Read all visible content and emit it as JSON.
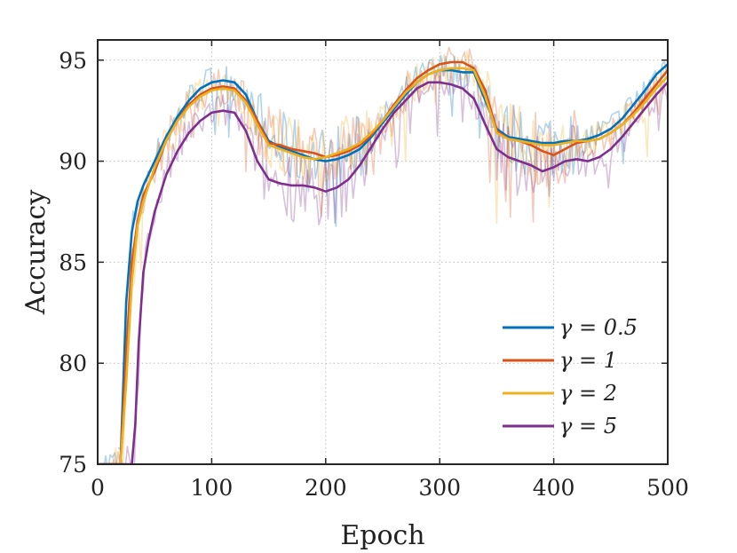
{
  "chart_data": {
    "type": "line",
    "title": "",
    "xlabel": "Epoch",
    "ylabel": "Accuracy",
    "xlim": [
      0,
      500
    ],
    "ylim": [
      75,
      96
    ],
    "xticks": [
      0,
      100,
      200,
      300,
      400,
      500
    ],
    "yticks": [
      75,
      80,
      85,
      90,
      95
    ],
    "grid": true,
    "legend_position": "lower-right",
    "series": [
      {
        "name": "γ = 0.5",
        "color": "#0072BD",
        "x": [
          0,
          15,
          20,
          25,
          30,
          35,
          40,
          50,
          60,
          70,
          80,
          90,
          100,
          110,
          120,
          130,
          140,
          150,
          160,
          170,
          180,
          190,
          200,
          210,
          220,
          230,
          240,
          250,
          260,
          270,
          280,
          290,
          300,
          310,
          320,
          330,
          340,
          350,
          360,
          370,
          380,
          390,
          400,
          410,
          420,
          430,
          440,
          450,
          460,
          470,
          480,
          490,
          500
        ],
        "y": [
          75,
          75,
          75,
          83,
          86.5,
          88,
          88.8,
          90,
          91.2,
          92.2,
          93,
          93.6,
          93.9,
          94,
          93.9,
          93.3,
          92,
          91,
          90.7,
          90.5,
          90.3,
          90.1,
          90,
          90.1,
          90.3,
          90.6,
          91.2,
          91.9,
          92.6,
          93.3,
          93.9,
          94.3,
          94.5,
          94.5,
          94.4,
          94.4,
          93,
          91.6,
          91.2,
          91.1,
          91,
          90.9,
          90.9,
          91,
          91,
          91.1,
          91.3,
          91.6,
          92.1,
          92.8,
          93.5,
          94.3,
          94.8
        ]
      },
      {
        "name": "γ = 1",
        "color": "#D95319",
        "x": [
          0,
          20,
          25,
          30,
          35,
          40,
          50,
          60,
          70,
          80,
          90,
          100,
          110,
          120,
          130,
          140,
          150,
          160,
          170,
          180,
          190,
          200,
          210,
          220,
          230,
          240,
          250,
          260,
          270,
          280,
          290,
          300,
          310,
          320,
          330,
          340,
          350,
          360,
          370,
          380,
          390,
          400,
          410,
          420,
          430,
          440,
          450,
          460,
          470,
          480,
          490,
          500
        ],
        "y": [
          75,
          75,
          80.5,
          85,
          87,
          88.3,
          89.5,
          91,
          92,
          92.8,
          93.3,
          93.6,
          93.7,
          93.6,
          93,
          92,
          90.9,
          90.8,
          90.6,
          90.5,
          90.4,
          90.2,
          90.3,
          90.5,
          90.8,
          91.3,
          92,
          92.8,
          93.5,
          94.1,
          94.5,
          94.8,
          94.9,
          94.9,
          94.6,
          93.5,
          91.5,
          91.1,
          91,
          90.8,
          90.5,
          90.3,
          90.6,
          90.9,
          91,
          91.1,
          91.4,
          91.8,
          92.4,
          93.1,
          93.8,
          94.5
        ]
      },
      {
        "name": "γ = 2",
        "color": "#EDB120",
        "x": [
          0,
          20,
          25,
          30,
          35,
          40,
          50,
          60,
          70,
          80,
          90,
          100,
          110,
          120,
          130,
          140,
          150,
          160,
          170,
          180,
          190,
          200,
          210,
          220,
          230,
          240,
          250,
          260,
          270,
          280,
          290,
          300,
          310,
          320,
          330,
          340,
          350,
          360,
          370,
          380,
          390,
          400,
          410,
          420,
          430,
          440,
          450,
          460,
          470,
          480,
          490,
          500
        ],
        "y": [
          75,
          75,
          79,
          84,
          86.8,
          88,
          89.7,
          91,
          92,
          92.7,
          93.2,
          93.5,
          93.6,
          93.5,
          92.9,
          91.8,
          90.8,
          90.6,
          90.4,
          90.2,
          90.1,
          90.2,
          90.4,
          90.6,
          90.9,
          91.4,
          92,
          92.7,
          93.4,
          93.9,
          94.3,
          94.5,
          94.6,
          94.6,
          94.5,
          93.2,
          91.4,
          91.1,
          91,
          90.9,
          90.8,
          90.8,
          90.9,
          91,
          91,
          91.1,
          91.4,
          91.8,
          92.3,
          92.9,
          93.6,
          94.2
        ]
      },
      {
        "name": "γ = 5",
        "color": "#7E2F8E",
        "x": [
          0,
          30,
          33,
          36,
          40,
          45,
          50,
          60,
          70,
          80,
          90,
          100,
          110,
          120,
          130,
          140,
          150,
          160,
          170,
          180,
          190,
          200,
          210,
          220,
          230,
          240,
          250,
          260,
          270,
          280,
          290,
          300,
          310,
          320,
          330,
          340,
          350,
          360,
          370,
          380,
          390,
          400,
          410,
          420,
          430,
          440,
          450,
          460,
          470,
          480,
          490,
          500
        ],
        "y": [
          75,
          75,
          77,
          81,
          84.5,
          86.2,
          87.5,
          89.3,
          90.5,
          91.4,
          92,
          92.4,
          92.5,
          92.4,
          91.5,
          90,
          89.1,
          88.9,
          88.8,
          88.8,
          88.7,
          88.5,
          88.7,
          89.1,
          89.8,
          90.7,
          91.6,
          92.4,
          93,
          93.6,
          93.9,
          93.9,
          93.8,
          93.6,
          93.1,
          91.8,
          90.6,
          90.2,
          90,
          89.8,
          89.5,
          89.7,
          90,
          90.1,
          90,
          90.2,
          90.6,
          91.2,
          91.9,
          92.6,
          93.3,
          93.9
        ]
      }
    ]
  }
}
